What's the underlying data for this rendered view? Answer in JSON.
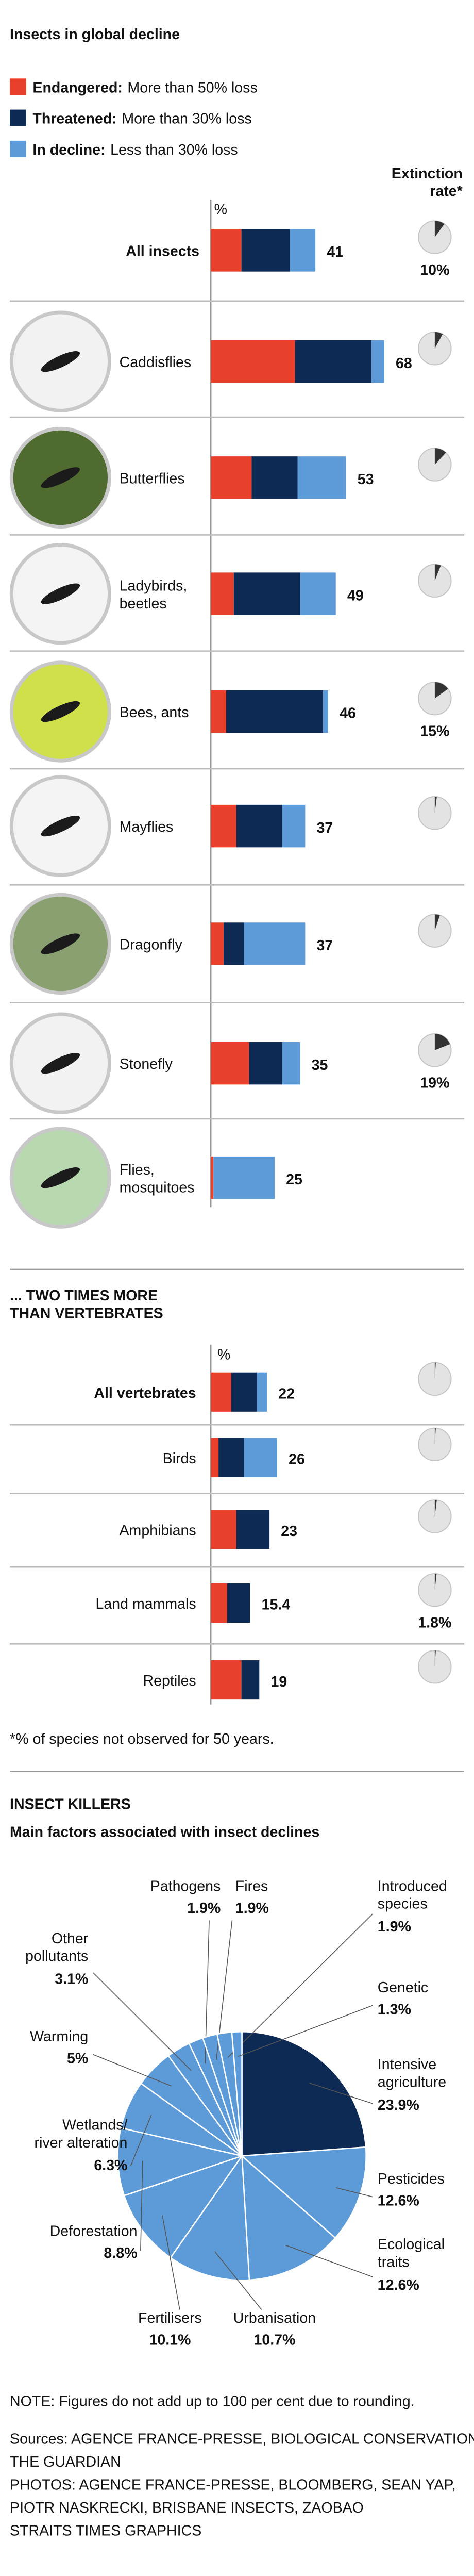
{
  "title": "Insects in global decline",
  "footnote": "*% of species not observed for 50 years.",
  "note": "NOTE: Figures do not add up to 100 per cent due to rounding.",
  "sources": [
    "Sources: AGENCE FRANCE-PRESSE, BIOLOGICAL CONSERVATION,",
    "THE GUARDIAN",
    "PHOTOS: AGENCE FRANCE-PRESSE, BLOOMBERG, SEAN YAP,",
    "PIOTR NASKRECKI, BRISBANE INSECTS, ZAOBAO",
    "STRAITS TIMES GRAPHICS"
  ],
  "chart_data": [
    {
      "type": "bar",
      "orientation": "horizontal",
      "stacked": true,
      "unit": "%",
      "xlim": [
        0,
        100
      ],
      "categories": [
        "All insects",
        "Caddisflies",
        "Butterflies",
        "Ladybirds,\nbeetles",
        "Bees, ants",
        "Mayflies",
        "Dragonfly",
        "Stonefly",
        "Flies,\nmosquitoes"
      ],
      "series": [
        {
          "name": "Endangered:",
          "description": "More than 50% loss",
          "color": "#e8402a",
          "values": [
            12,
            33,
            16,
            9,
            6,
            10,
            5,
            15,
            1
          ]
        },
        {
          "name": "Threatened:",
          "description": "More than 30% loss",
          "color": "#0d2a54",
          "values": [
            19,
            30,
            18,
            26,
            38,
            18,
            8,
            13,
            0
          ]
        },
        {
          "name": "In decline:",
          "description": "Less than 30% loss",
          "color": "#5d9bd8",
          "values": [
            10,
            5,
            19,
            14,
            2,
            9,
            24,
            7,
            24
          ]
        }
      ],
      "totals": [
        41,
        68,
        53,
        49,
        46,
        37,
        37,
        35,
        25
      ],
      "extinction_rate": {
        "title": "Extinction\nrate*",
        "values": [
          10,
          8,
          12,
          6,
          15,
          2,
          5,
          19,
          null
        ],
        "value_labels": [
          "10%",
          null,
          null,
          null,
          "15%",
          null,
          null,
          "19%",
          null
        ]
      }
    },
    {
      "type": "bar",
      "orientation": "horizontal",
      "stacked": true,
      "title": "... TWO TIMES MORE\nTHAN VERTEBRATES",
      "unit": "%",
      "xlim": [
        0,
        100
      ],
      "categories": [
        "All vertebrates",
        "Birds",
        "Amphibians",
        "Land mammals",
        "Reptiles"
      ],
      "series": [
        {
          "color": "#e8402a",
          "values": [
            8,
            3,
            10,
            6.4,
            12
          ]
        },
        {
          "color": "#0d2a54",
          "values": [
            10,
            10,
            13,
            9,
            7
          ]
        },
        {
          "color": "#5d9bd8",
          "values": [
            4,
            13,
            0,
            0,
            0
          ]
        }
      ],
      "totals": [
        22,
        26,
        23,
        15.4,
        19
      ],
      "extinction_rate": {
        "values": [
          1,
          1,
          2,
          1.8,
          1
        ],
        "value_labels": [
          null,
          null,
          null,
          "1.8%",
          null
        ]
      }
    },
    {
      "type": "pie",
      "title": "INSECT KILLERS",
      "subtitle": "Main factors associated with insect declines",
      "categories": [
        "Intensive\nagriculture",
        "Pesticides",
        "Ecological\ntraits",
        "Urbanisation",
        "Fertilisers",
        "Deforestation",
        "Wetlands/\nriver alteration",
        "Warming",
        "Other\npollutants",
        "Pathogens",
        "Fires",
        "Introduced\nspecies",
        "Genetic"
      ],
      "values": [
        23.9,
        12.6,
        12.6,
        10.7,
        10.1,
        8.8,
        6.3,
        5,
        3.1,
        1.9,
        1.9,
        1.9,
        1.3
      ],
      "value_labels": [
        "23.9%",
        "12.6%",
        "12.6%",
        "10.7%",
        "10.1%",
        "8.8%",
        "6.3%",
        "5%",
        "3.1%",
        "1.9%",
        "1.9%",
        "1.9%",
        "1.3%"
      ],
      "colors": [
        "#0d2a54",
        "#5d9bd8",
        "#5d9bd8",
        "#5d9bd8",
        "#5d9bd8",
        "#5d9bd8",
        "#5d9bd8",
        "#5d9bd8",
        "#5d9bd8",
        "#5d9bd8",
        "#5d9bd8",
        "#5d9bd8",
        "#5d9bd8"
      ]
    }
  ]
}
